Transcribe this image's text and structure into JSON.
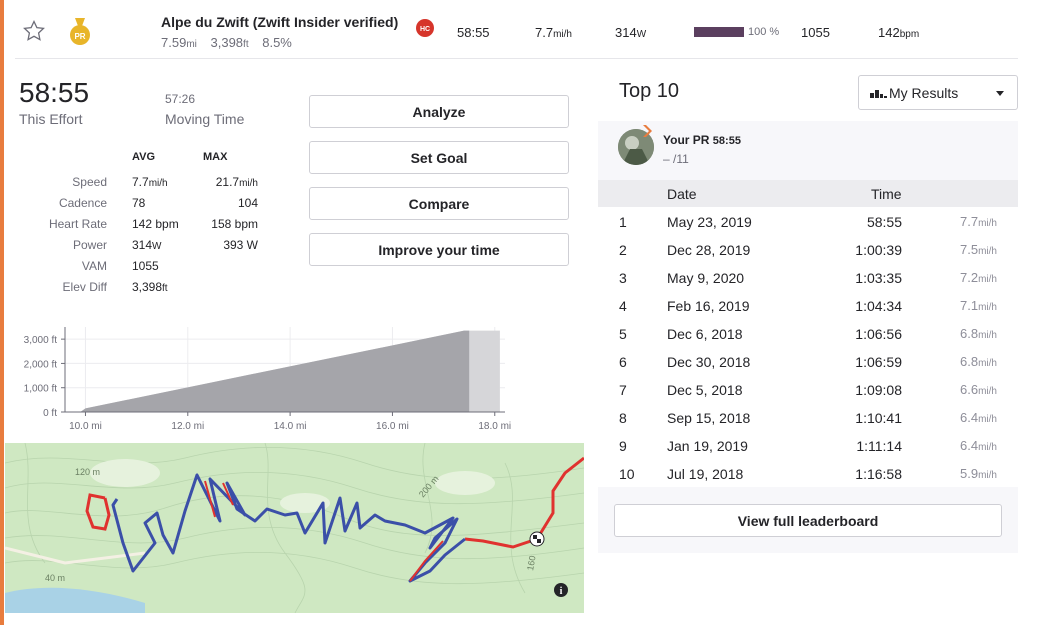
{
  "segment": {
    "name": "Alpe du Zwift (Zwift Insider verified)",
    "distance": "7.59",
    "distance_unit": "mi",
    "elev_gain": "3,398",
    "elev_unit": "ft",
    "grade": "8.5%",
    "pr_badge": "PR",
    "category_badge": "HC",
    "time": "58:55",
    "speed": "7.7",
    "speed_unit": "mi/h",
    "power": "314",
    "power_unit": "W",
    "power_pct_value": 100,
    "power_pct_label": "100 %",
    "vam": "1055",
    "heart_rate": "142",
    "heart_rate_unit": "bpm"
  },
  "effort": {
    "time": "58:55",
    "time_label": "This Effort",
    "moving_time": "57:26",
    "moving_label": "Moving Time"
  },
  "stats": {
    "avg_header": "AVG",
    "max_header": "MAX",
    "rows": [
      {
        "label": "Speed",
        "avg": "7.7",
        "avg_unit": "mi/h",
        "max": "21.7",
        "max_unit": "mi/h"
      },
      {
        "label": "Cadence",
        "avg": "78",
        "avg_unit": "",
        "max": "104",
        "max_unit": ""
      },
      {
        "label": "Heart Rate",
        "avg": "142 bpm",
        "avg_unit": "",
        "max": "158 bpm",
        "max_unit": ""
      },
      {
        "label": "Power",
        "avg": "314",
        "avg_unit": "W",
        "max": "393 W",
        "max_unit": ""
      },
      {
        "label": "VAM",
        "avg": "1055",
        "avg_unit": "",
        "max": "",
        "max_unit": ""
      },
      {
        "label": "Elev Diff",
        "avg": "3,398",
        "avg_unit": "ft",
        "max": "",
        "max_unit": ""
      }
    ]
  },
  "buttons": {
    "analyze": "Analyze",
    "set_goal": "Set Goal",
    "compare": "Compare",
    "improve": "Improve your time"
  },
  "chart_data": {
    "type": "area",
    "xlabel": "",
    "ylabel": "",
    "x_ticks": [
      "10.0 mi",
      "12.0 mi",
      "14.0 mi",
      "16.0 mi",
      "18.0 mi"
    ],
    "y_ticks": [
      "3,000 ft",
      "2,000 ft",
      "1,000 ft",
      "0 ft"
    ],
    "xlim": [
      9.6,
      18.2
    ],
    "ylim": [
      0,
      3500
    ],
    "segment_range_mi": [
      9.9,
      17.5
    ],
    "x": [
      9.6,
      9.9,
      10.0,
      17.4,
      17.5,
      18.1
    ],
    "y": [
      0,
      0,
      150,
      3350,
      3350,
      3350
    ]
  },
  "map": {
    "contour_labels": [
      "120 m",
      "40 m",
      "200 m",
      "160"
    ],
    "info_icon": "info-icon",
    "finish_icon": "checkered-flag-icon"
  },
  "leaderboard": {
    "title": "Top 10",
    "filter": "My Results",
    "pr_label": "Your PR",
    "pr_time": "58:55",
    "pr_rank": "– /11",
    "col_date": "Date",
    "col_time": "Time",
    "rows": [
      {
        "rank": "1",
        "date": "May 23, 2019",
        "time": "58:55",
        "speed": "7.7",
        "unit": "mi/h"
      },
      {
        "rank": "2",
        "date": "Dec 28, 2019",
        "time": "1:00:39",
        "speed": "7.5",
        "unit": "mi/h"
      },
      {
        "rank": "3",
        "date": "May 9, 2020",
        "time": "1:03:35",
        "speed": "7.2",
        "unit": "mi/h"
      },
      {
        "rank": "4",
        "date": "Feb 16, 2019",
        "time": "1:04:34",
        "speed": "7.1",
        "unit": "mi/h"
      },
      {
        "rank": "5",
        "date": "Dec 6, 2018",
        "time": "1:06:56",
        "speed": "6.8",
        "unit": "mi/h"
      },
      {
        "rank": "6",
        "date": "Dec 30, 2018",
        "time": "1:06:59",
        "speed": "6.8",
        "unit": "mi/h"
      },
      {
        "rank": "7",
        "date": "Dec 5, 2018",
        "time": "1:09:08",
        "speed": "6.6",
        "unit": "mi/h"
      },
      {
        "rank": "8",
        "date": "Sep 15, 2018",
        "time": "1:10:41",
        "speed": "6.4",
        "unit": "mi/h"
      },
      {
        "rank": "9",
        "date": "Jan 19, 2019",
        "time": "1:11:14",
        "speed": "6.4",
        "unit": "mi/h"
      },
      {
        "rank": "10",
        "date": "Jul 19, 2018",
        "time": "1:16:58",
        "speed": "5.9",
        "unit": "mi/h"
      }
    ],
    "full_button": "View full leaderboard"
  },
  "colors": {
    "accent": "#e87c3e",
    "power_bar": "#5b3f5f",
    "hc_badge": "#d6352b",
    "pr_medal": "#e8b52a",
    "route_blue": "#3b4fa8",
    "route_red": "#e0322f",
    "map_bg": "#cfe8c2"
  }
}
